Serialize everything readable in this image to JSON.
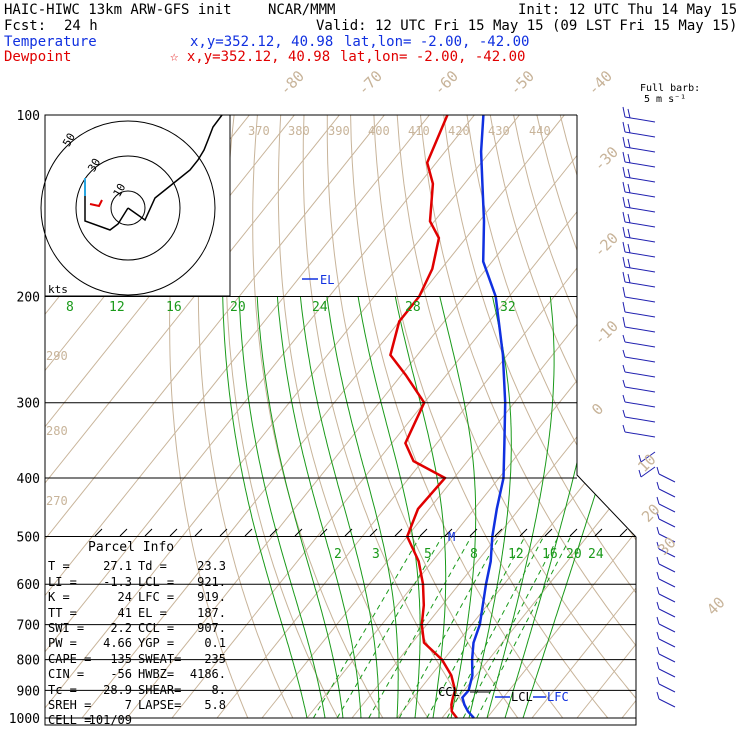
{
  "header": {
    "model": "HAIC-HIWC 13km ARW-GFS init",
    "org": "NCAR/MMM",
    "init": "Init: 12 UTC Thu 14 May 15",
    "fcst_label": "Fcst:",
    "fcst_value": "24 h",
    "valid": "Valid: 12 UTC Fri 15 May 15 (09 LST Fri 15 May 15)",
    "temperature_label": "Temperature",
    "temperature_xy": "x,y=352.12, 40.98",
    "temperature_latlon": "lat,lon= -2.00, -42.00",
    "dewpoint_label": "Dewpoint",
    "dewpoint_xy": "☆ x,y=352.12, 40.98",
    "dewpoint_latlon": "lat,lon= -2.00, -42.00"
  },
  "barb_title": "Full barb:",
  "barb_unit": "5 m s⁻¹",
  "hodograph": {
    "units": "kts",
    "rings": [
      "10",
      "30",
      "50"
    ]
  },
  "parcel": {
    "title": "Parcel Info",
    "rows": [
      {
        "k": "T =",
        "v": "27.1",
        "k2": "Td =",
        "v2": "23.3"
      },
      {
        "k": "LI =",
        "v": "-1.3",
        "k2": "LCL =",
        "v2": "921."
      },
      {
        "k": "K =",
        "v": "24",
        "k2": "LFC =",
        "v2": "919."
      },
      {
        "k": "TT =",
        "v": "41",
        "k2": "EL =",
        "v2": "187."
      },
      {
        "k": "SWI =",
        "v": "2.2",
        "k2": "CCL =",
        "v2": "907."
      },
      {
        "k": "PW =",
        "v": "4.66",
        "k2": "YGP =",
        "v2": "0.1"
      },
      {
        "k": "CAPE =",
        "v": "135",
        "k2": "SWEAT=",
        "v2": "235"
      },
      {
        "k": "CIN =",
        "v": "-56",
        "k2": "HWBZ=",
        "v2": "4186."
      },
      {
        "k": "Tc =",
        "v": "28.9",
        "k2": "SHEAR=",
        "v2": "8."
      },
      {
        "k": "SREH =",
        "v": "7",
        "k2": "LAPSE=",
        "v2": "5.8"
      },
      {
        "k": "CELL =",
        "v": "101/09",
        "k2": "",
        "v2": ""
      }
    ]
  },
  "level_labels": {
    "el": "EL",
    "lcl": "LCL",
    "lfc": "LFC",
    "ccl": "CCL",
    "m": "M"
  },
  "colors": {
    "temperature": "#1030e0",
    "dewpoint": "#e00000",
    "isotherm": "#c8b49a",
    "mixing_ratio": "#1a9a1a",
    "isobar": "#000000",
    "barb": "#2020b0"
  },
  "chart_data": {
    "type": "line",
    "title": "",
    "y_axis": "pressure (hPa), log scale",
    "pressure_levels": [
      100,
      200,
      300,
      400,
      500,
      600,
      700,
      800,
      900,
      1000
    ],
    "isotherm_labels": [
      "-80",
      "-70",
      "-60",
      "-50",
      "-40",
      "-30",
      "-20",
      "-10",
      "0",
      "10",
      "20",
      "30",
      "40"
    ],
    "theta_labels": [
      "370",
      "380",
      "390",
      "400",
      "410",
      "420",
      "430",
      "440",
      "290",
      "280",
      "270"
    ],
    "mixing_ratio_labels_upper": [
      "8",
      "12",
      "16",
      "20",
      "24",
      "28",
      "32"
    ],
    "mixing_ratio_labels_lower": [
      "2",
      "3",
      "5",
      "8",
      "12",
      "16",
      "20",
      "24"
    ],
    "series": [
      {
        "name": "Temperature",
        "points": [
          [
            1000,
            27.1
          ],
          [
            975,
            24.6
          ],
          [
            950,
            22.6
          ],
          [
            925,
            20.9
          ],
          [
            900,
            21.0
          ],
          [
            850,
            19.2
          ],
          [
            800,
            16.3
          ],
          [
            750,
            13.6
          ],
          [
            700,
            11.8
          ],
          [
            650,
            9.0
          ],
          [
            600,
            6.0
          ],
          [
            550,
            3.0
          ],
          [
            500,
            -1.1
          ],
          [
            450,
            -5.0
          ],
          [
            400,
            -9.0
          ],
          [
            350,
            -15.0
          ],
          [
            300,
            -22.0
          ],
          [
            250,
            -31.0
          ],
          [
            200,
            -43.0
          ],
          [
            175,
            -52.0
          ],
          [
            150,
            -59.0
          ],
          [
            130,
            -66.0
          ],
          [
            115,
            -72.0
          ],
          [
            100,
            -78.0
          ]
        ]
      },
      {
        "name": "Dewpoint",
        "points": [
          [
            1000,
            23.3
          ],
          [
            975,
            21.0
          ],
          [
            950,
            19.7
          ],
          [
            925,
            18.8
          ],
          [
            900,
            18.0
          ],
          [
            850,
            14.5
          ],
          [
            800,
            9.6
          ],
          [
            750,
            2.6
          ],
          [
            700,
            -1.1
          ],
          [
            650,
            -4.1
          ],
          [
            600,
            -8.0
          ],
          [
            550,
            -13.0
          ],
          [
            500,
            -20.0
          ],
          [
            450,
            -22.5
          ],
          [
            400,
            -22.0
          ],
          [
            375,
            -32.0
          ],
          [
            350,
            -37.0
          ],
          [
            300,
            -40.0
          ],
          [
            270,
            -49.0
          ],
          [
            250,
            -56.0
          ],
          [
            220,
            -60.0
          ],
          [
            200,
            -60.0
          ],
          [
            180,
            -62.0
          ],
          [
            160,
            -66.0
          ],
          [
            150,
            -71.0
          ],
          [
            130,
            -77.0
          ],
          [
            120,
            -82.0
          ],
          [
            100,
            -86.0
          ]
        ]
      }
    ]
  }
}
